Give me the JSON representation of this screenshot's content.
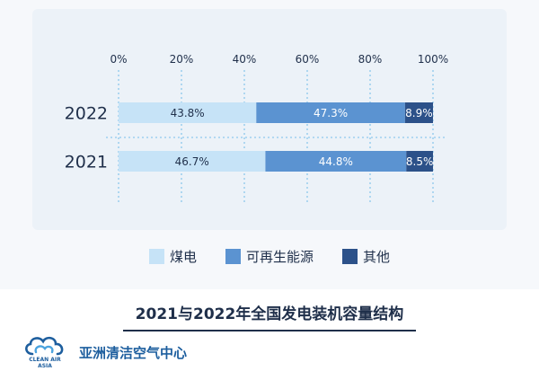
{
  "chart_data": {
    "type": "bar",
    "orientation": "horizontal",
    "stacked": true,
    "normalized": true,
    "categories": [
      "2022",
      "2021"
    ],
    "series": [
      {
        "name": "煤电",
        "values": [
          43.8,
          46.7
        ],
        "labels": [
          "43.8%",
          "46.7%"
        ],
        "color": "#c6e3f7"
      },
      {
        "name": "可再生能源",
        "values": [
          47.3,
          44.8
        ],
        "labels": [
          "47.3%",
          "44.8%"
        ],
        "color": "#5b93d1"
      },
      {
        "name": "其他",
        "values": [
          8.9,
          8.5
        ],
        "labels": [
          "8.9%",
          "8.5%"
        ],
        "color": "#2c5189"
      }
    ],
    "x_ticks": [
      "0%",
      "20%",
      "40%",
      "60%",
      "80%",
      "100%"
    ],
    "xlim": [
      0,
      100
    ],
    "grid": true,
    "legend_position": "bottom"
  },
  "footer": {
    "title": "2021与2022年全国发电装机容量结构",
    "org_name": "亚洲清洁空气中心",
    "logo_text_line1": "CLEAN AIR",
    "logo_text_line2": "ASIA"
  },
  "colors": {
    "background": "#f6f8fb",
    "panel": "#ecf2f8",
    "grid": "#9fd0ef",
    "text_dark": "#1f2f4a",
    "brand": "#1d5e9e"
  }
}
